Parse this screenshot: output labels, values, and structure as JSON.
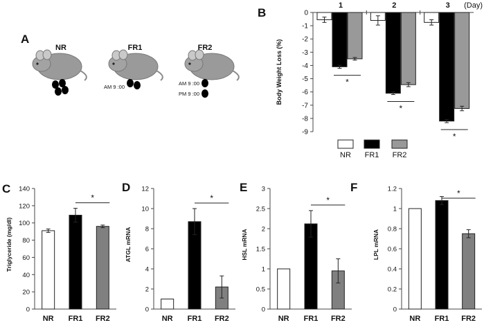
{
  "figure": {
    "panel_letters": [
      "A",
      "B",
      "C",
      "D",
      "E",
      "F"
    ],
    "panelA": {
      "groups": [
        {
          "label": "NR",
          "annotations": []
        },
        {
          "label": "FR1",
          "annotations": [
            "AM 9 :00"
          ]
        },
        {
          "label": "FR2",
          "annotations": [
            "AM 9 :00",
            "PM 9 :00"
          ]
        }
      ]
    },
    "legend": {
      "entries": [
        "NR",
        "FR1",
        "FR2"
      ]
    }
  },
  "colors": {
    "NR": "#ffffff",
    "FR1": "#000000",
    "FR2": "#999999",
    "FR2_dark": "#808080",
    "mouse_body": "#9a9a9a"
  },
  "chart_data": [
    {
      "panel": "B",
      "type": "bar",
      "categories": [
        "1",
        "2",
        "3"
      ],
      "xlabel": "(Day)",
      "ylabel": "Body  Weight  Loss  (%)",
      "ylim": [
        -9,
        0
      ],
      "yticks": [
        "0",
        "-1",
        "-2",
        "-3",
        "-4",
        "-5",
        "-6",
        "-7",
        "-8",
        "-9"
      ],
      "series": [
        {
          "name": "NR",
          "values": [
            -0.55,
            -0.6,
            -0.75
          ],
          "errors": [
            0.2,
            0.35,
            0.2
          ]
        },
        {
          "name": "FR1",
          "values": [
            -4.1,
            -6.1,
            -8.2
          ],
          "errors": [
            0.12,
            0.1,
            0.12
          ]
        },
        {
          "name": "FR2",
          "values": [
            -3.5,
            -5.45,
            -7.25
          ],
          "errors": [
            0.1,
            0.15,
            0.17
          ]
        }
      ],
      "significance": [
        "*",
        "*",
        "*"
      ]
    },
    {
      "panel": "C",
      "type": "bar",
      "categories": [
        "NR",
        "FR1",
        "FR2"
      ],
      "ylabel": "Triglyceride (mg/dl)",
      "ylim": [
        0,
        140
      ],
      "yticks": [
        "0",
        "20",
        "40",
        "60",
        "80",
        "100",
        "120",
        "140"
      ],
      "values": [
        91,
        109,
        96
      ],
      "errors": [
        2,
        8,
        1.5
      ],
      "significance": "*"
    },
    {
      "panel": "D",
      "type": "bar",
      "categories": [
        "NR",
        "FR1",
        "FR2"
      ],
      "ylabel": "ATGL mRNA",
      "ylim": [
        0,
        12
      ],
      "yticks": [
        "0",
        "2",
        "4",
        "6",
        "8",
        "10",
        "12"
      ],
      "values": [
        1.0,
        8.7,
        2.2
      ],
      "errors": [
        0,
        1.3,
        1.1
      ],
      "significance": "*"
    },
    {
      "panel": "E",
      "type": "bar",
      "categories": [
        "NR",
        "FR1",
        "FR2"
      ],
      "ylabel": "HSL mRNA",
      "ylim": [
        0,
        3
      ],
      "yticks": [
        "0",
        "0.5",
        "1",
        "1.5",
        "2",
        "2.5",
        "3"
      ],
      "values": [
        1.0,
        2.12,
        0.95
      ],
      "errors": [
        0,
        0.33,
        0.3
      ],
      "significance": "*"
    },
    {
      "panel": "F",
      "type": "bar",
      "categories": [
        "NR",
        "FR1",
        "FR2"
      ],
      "ylabel": "LPL mRNA",
      "ylim": [
        0,
        1.2
      ],
      "yticks": [
        "0",
        "0.2",
        "0.4",
        "0.6",
        "0.8",
        "1",
        "1.2"
      ],
      "values": [
        1.0,
        1.08,
        0.75
      ],
      "errors": [
        0,
        0.04,
        0.04
      ],
      "significance": "*"
    }
  ]
}
